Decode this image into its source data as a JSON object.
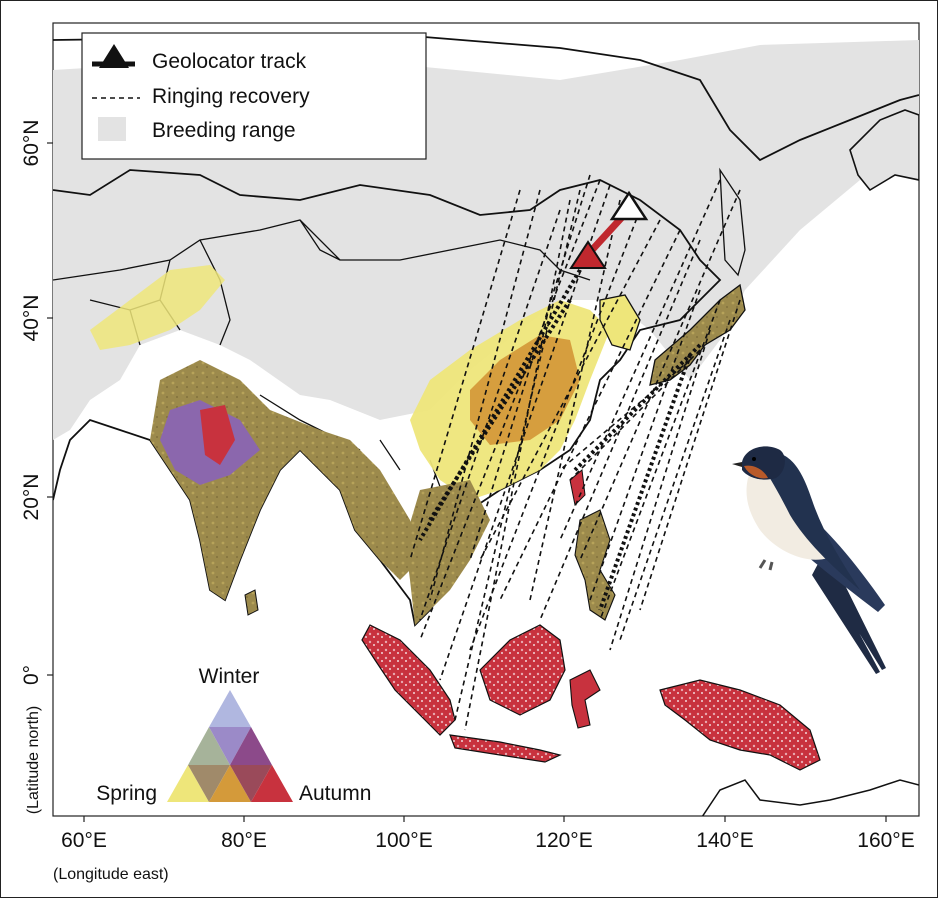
{
  "map": {
    "axis_x_label": "(Longitude east)",
    "axis_y_label": "(Latitude north)",
    "lon_ticks": [
      "60°E",
      "80°E",
      "100°E",
      "120°E",
      "140°E",
      "160°E"
    ],
    "lat_ticks": [
      "60°N",
      "40°N",
      "20°N",
      "0°"
    ]
  },
  "legend": {
    "geolocator_label": "Geolocator track",
    "ringing_label": "Ringing recovery",
    "breeding_label": "Breeding range"
  },
  "season_key": {
    "winter": "Winter",
    "spring": "Spring",
    "autumn": "Autumn"
  },
  "colors": {
    "breeding_range": "#e3e3e3",
    "spring": "#eee67a",
    "autumn": "#c8323e",
    "winter": "#9b8ac8",
    "spring_autumn_mix": "#9c8a4c",
    "track": "#c0282e",
    "ocean": "#ffffff"
  },
  "icons": [
    "triangle-track-icon",
    "swallow-illustration"
  ]
}
